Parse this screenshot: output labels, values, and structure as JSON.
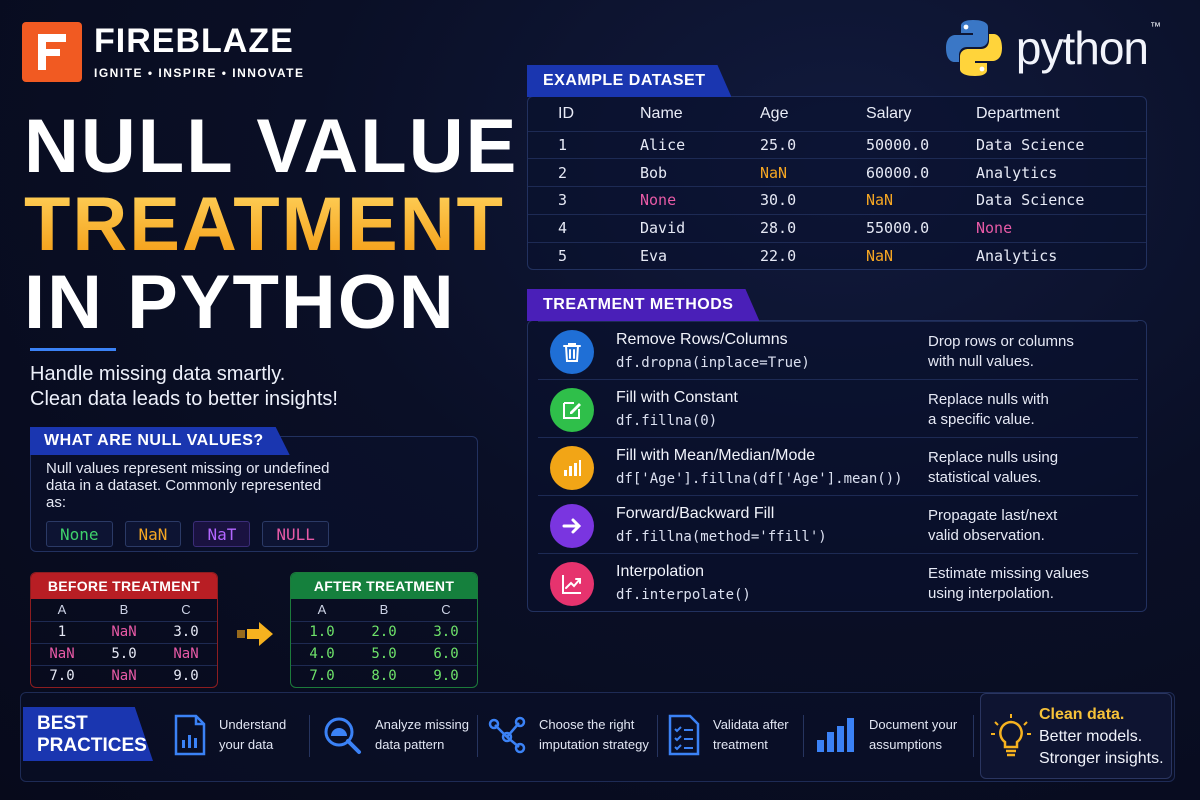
{
  "brand": {
    "name": "FIREBLAZE",
    "tagline": "IGNITE • INSPIRE • INNOVATE"
  },
  "python_logo": {
    "word": "python",
    "tm": "™"
  },
  "title": {
    "line1": "NULL VALUE",
    "line2": "TREATMENT",
    "line3": "IN PYTHON"
  },
  "subtitle": {
    "line1": "Handle missing data smartly.",
    "line2": "Clean data leads to better insights!"
  },
  "null_values": {
    "heading": "WHAT ARE NULL VALUES?",
    "description": "Null values represent missing or undefined data in a dataset. Commonly represented as:",
    "chips": [
      {
        "label": "None",
        "color": "#3fd16b"
      },
      {
        "label": "NaN",
        "color": "#f5a623"
      },
      {
        "label": "NaT",
        "color": "#b266ff"
      },
      {
        "label": "NULL",
        "color": "#e75aa6"
      }
    ]
  },
  "before": {
    "heading": "BEFORE TREATMENT",
    "columns": [
      "A",
      "B",
      "C"
    ],
    "rows": [
      [
        "1",
        "NaN",
        "3.0"
      ],
      [
        "NaN",
        "5.0",
        "NaN"
      ],
      [
        "7.0",
        "NaN",
        "9.0"
      ]
    ]
  },
  "after": {
    "heading": "AFTER TREATMENT",
    "columns": [
      "A",
      "B",
      "C"
    ],
    "rows": [
      [
        "1.0",
        "2.0",
        "3.0"
      ],
      [
        "4.0",
        "5.0",
        "6.0"
      ],
      [
        "7.0",
        "8.0",
        "9.0"
      ]
    ]
  },
  "dataset": {
    "heading": "EXAMPLE DATASET",
    "columns": [
      "ID",
      "Name",
      "Age",
      "Salary",
      "Department"
    ],
    "rows": [
      [
        "1",
        "Alice",
        "25.0",
        "50000.0",
        "Data Science"
      ],
      [
        "2",
        "Bob",
        "NaN",
        "60000.0",
        "Analytics"
      ],
      [
        "3",
        "None",
        "30.0",
        "NaN",
        "Data Science"
      ],
      [
        "4",
        "David",
        "28.0",
        "55000.0",
        "None"
      ],
      [
        "5",
        "Eva",
        "22.0",
        "NaN",
        "Analytics"
      ]
    ]
  },
  "methods": {
    "heading": "TREATMENT METHODS",
    "items": [
      {
        "name": "Remove Rows/Columns",
        "code": "df.dropna(inplace=True)",
        "desc1": "Drop rows or columns",
        "desc2": "with null values.",
        "icon": "trash-icon",
        "color": "#1f6fd6"
      },
      {
        "name": "Fill with Constant",
        "code": "df.fillna(0)",
        "desc1": "Replace nulls with",
        "desc2": "a specific value.",
        "icon": "edit-icon",
        "color": "#2fbf4a"
      },
      {
        "name": "Fill with Mean/Median/Mode",
        "code": "df['Age'].fillna(df['Age'].mean())",
        "desc1": "Replace nulls using",
        "desc2": "statistical values.",
        "icon": "bar-chart-icon",
        "color": "#f2a516"
      },
      {
        "name": "Forward/Backward Fill",
        "code": "df.fillna(method='ffill')",
        "desc1": "Propagate last/next",
        "desc2": "valid observation.",
        "icon": "arrow-right-icon",
        "color": "#7a35e0"
      },
      {
        "name": "Interpolation",
        "code": "df.interpolate()",
        "desc1": "Estimate missing values",
        "desc2": "using interpolation.",
        "icon": "trend-icon",
        "color": "#e6336e"
      }
    ]
  },
  "best_practices": {
    "heading1": "BEST",
    "heading2": "PRACTICES",
    "items": [
      {
        "line1": "Understand",
        "line2": "your data",
        "icon": "document-chart-icon"
      },
      {
        "line1": "Analyze missing",
        "line2": "data pattern",
        "icon": "magnifier-icon"
      },
      {
        "line1": "Choose the right",
        "line2": "imputation strategy",
        "icon": "network-icon"
      },
      {
        "line1": "Validata after",
        "line2": "treatment",
        "icon": "checklist-icon"
      },
      {
        "line1": "Document your",
        "line2": "assumptions",
        "icon": "bars-icon"
      }
    ],
    "closing": {
      "line1": "Clean data.",
      "line2": "Better models.",
      "line3": "Stronger insights."
    }
  },
  "colors": {
    "accent_blue": "#1a36b0",
    "accent_purple": "#4a1fb8",
    "title_gold": "#f6a91a",
    "nan_orange": "#f5a623",
    "none_pink": "#e75aa6",
    "after_green": "#6ee36a",
    "brand_orange": "#f15a22"
  }
}
